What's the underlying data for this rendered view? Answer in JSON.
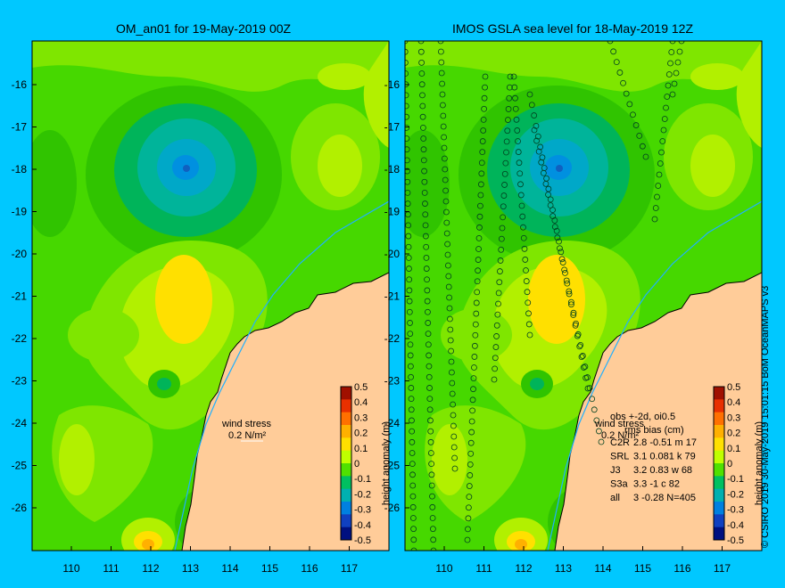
{
  "left_panel": {
    "title": "OM_an01 for 19-May-2019 00Z",
    "wind_label_1": "wind stress",
    "wind_label_2": "0.2 N/m²",
    "colorbar_label": "height anomaly (m)"
  },
  "right_panel": {
    "title": "IMOS GSLA sea level  for 18-May-2019 12Z",
    "wind_label_1": "wind stress",
    "wind_label_2": "0.2 N/m²",
    "colorbar_label": "height anomaly (m)",
    "stats_header_1": "obs +-2d, oi0.5",
    "stats_header_2": "rms bias (cm)",
    "stats": [
      {
        "label": "C2R",
        "values": "2.8 -0.51 m 17"
      },
      {
        "label": "SRL",
        "values": "3.1 0.081 k 79"
      },
      {
        "label": "J3",
        "values": "3.2 0.83 w 68"
      },
      {
        "label": "S3a",
        "values": "3.3 -1 c 82"
      },
      {
        "label": "all",
        "values": "3 -0.28 N=405"
      }
    ]
  },
  "axes": {
    "lat_ticks": [
      "-16",
      "-17",
      "-18",
      "-19",
      "-20",
      "-21",
      "-22",
      "-23",
      "-24",
      "-25",
      "-26"
    ],
    "lon_ticks": [
      "110",
      "111",
      "112",
      "113",
      "114",
      "115",
      "116",
      "117"
    ]
  },
  "colorbar_ticks": [
    "0.5",
    "0.4",
    "0.3",
    "0.2",
    "0.1",
    "0",
    "-0.1",
    "-0.2",
    "-0.3",
    "-0.4",
    "-0.5"
  ],
  "colorbar_colors": [
    "#a01000",
    "#e83000",
    "#ff7000",
    "#ffb000",
    "#ffe000",
    "#c0ff00",
    "#50e000",
    "#00c060",
    "#00b0b0",
    "#0080e0",
    "#1040c0",
    "#001080"
  ],
  "credit": "© CSIRO 2019   30-May-2019 15:01:15 BoM OceanMAPS v3"
}
